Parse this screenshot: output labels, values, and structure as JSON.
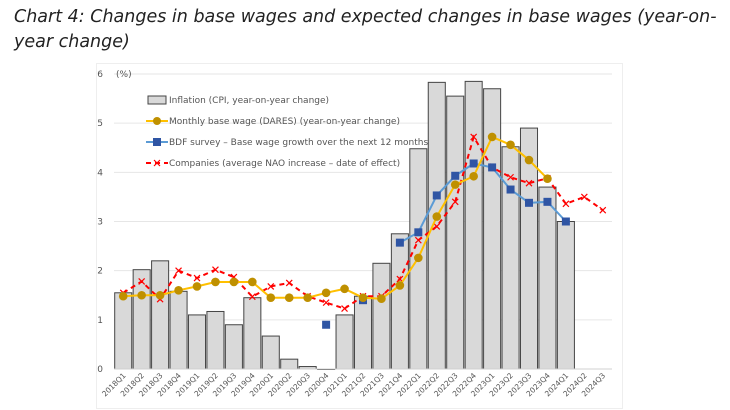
{
  "title": "Chart 4: Changes in base wages and expected changes in base wages (year-on-year change)",
  "chart_data": {
    "type": "bar+line",
    "unit_label": "(%)",
    "ylim": [
      0,
      6
    ],
    "yticks": [
      0,
      1,
      2,
      3,
      4,
      5,
      6
    ],
    "grid": true,
    "legend_position": "top-left",
    "categories": [
      "2018Q1",
      "2018Q2",
      "2018Q3",
      "2018Q4",
      "2019Q1",
      "2019Q2",
      "2019Q3",
      "2019Q4",
      "2020Q1",
      "2020Q2",
      "2020Q3",
      "2020Q4",
      "2021Q1",
      "2021Q2",
      "2021Q3",
      "2021Q4",
      "2022Q1",
      "2022Q2",
      "2022Q3",
      "2022Q4",
      "2023Q1",
      "2023Q2",
      "2023Q3",
      "2023Q4",
      "2024Q1",
      "2024Q2",
      "2024Q3"
    ],
    "series": [
      {
        "name": "Inflation (CPI, year-on-year change)",
        "kind": "bar",
        "color": "#d9d9d9",
        "values": [
          1.55,
          2.02,
          2.2,
          1.58,
          1.1,
          1.17,
          0.9,
          1.45,
          0.67,
          0.2,
          0.05,
          0.0,
          1.1,
          1.48,
          2.15,
          2.75,
          4.48,
          5.83,
          5.55,
          5.85,
          5.7,
          4.52,
          4.9,
          3.7,
          3.0,
          null,
          null
        ]
      },
      {
        "name": "Monthly base wage (DARES) (year-on-year change)",
        "kind": "line-circle",
        "color": "#ffc000",
        "marker_color": "#bf9000",
        "values": [
          1.48,
          1.5,
          1.5,
          1.6,
          1.68,
          1.77,
          1.77,
          1.77,
          1.45,
          1.45,
          1.45,
          1.55,
          1.63,
          1.45,
          1.43,
          1.7,
          2.26,
          3.1,
          3.75,
          3.92,
          4.72,
          4.56,
          4.25,
          3.87,
          null,
          null,
          null
        ]
      },
      {
        "name": "BDF survey – Base wage growth over the next 12 months",
        "kind": "line-square",
        "color": "#5b9bd5",
        "marker_color": "#2f55a4",
        "values": [
          null,
          null,
          null,
          null,
          null,
          null,
          null,
          null,
          null,
          null,
          null,
          0.9,
          null,
          1.4,
          null,
          2.57,
          2.78,
          3.53,
          3.93,
          4.18,
          4.1,
          3.65,
          3.38,
          3.4,
          3.0,
          null,
          null
        ]
      },
      {
        "name": "Companies (average NAO increase – date of effect)",
        "kind": "dashed-x",
        "color": "#ff0000",
        "values": [
          1.55,
          1.78,
          1.42,
          2.0,
          1.85,
          2.02,
          1.87,
          1.47,
          1.68,
          1.75,
          1.48,
          1.35,
          1.23,
          1.48,
          1.48,
          1.83,
          2.62,
          2.9,
          3.4,
          4.72,
          4.1,
          3.9,
          3.78,
          3.88,
          3.36,
          3.5,
          3.23
        ]
      }
    ]
  }
}
